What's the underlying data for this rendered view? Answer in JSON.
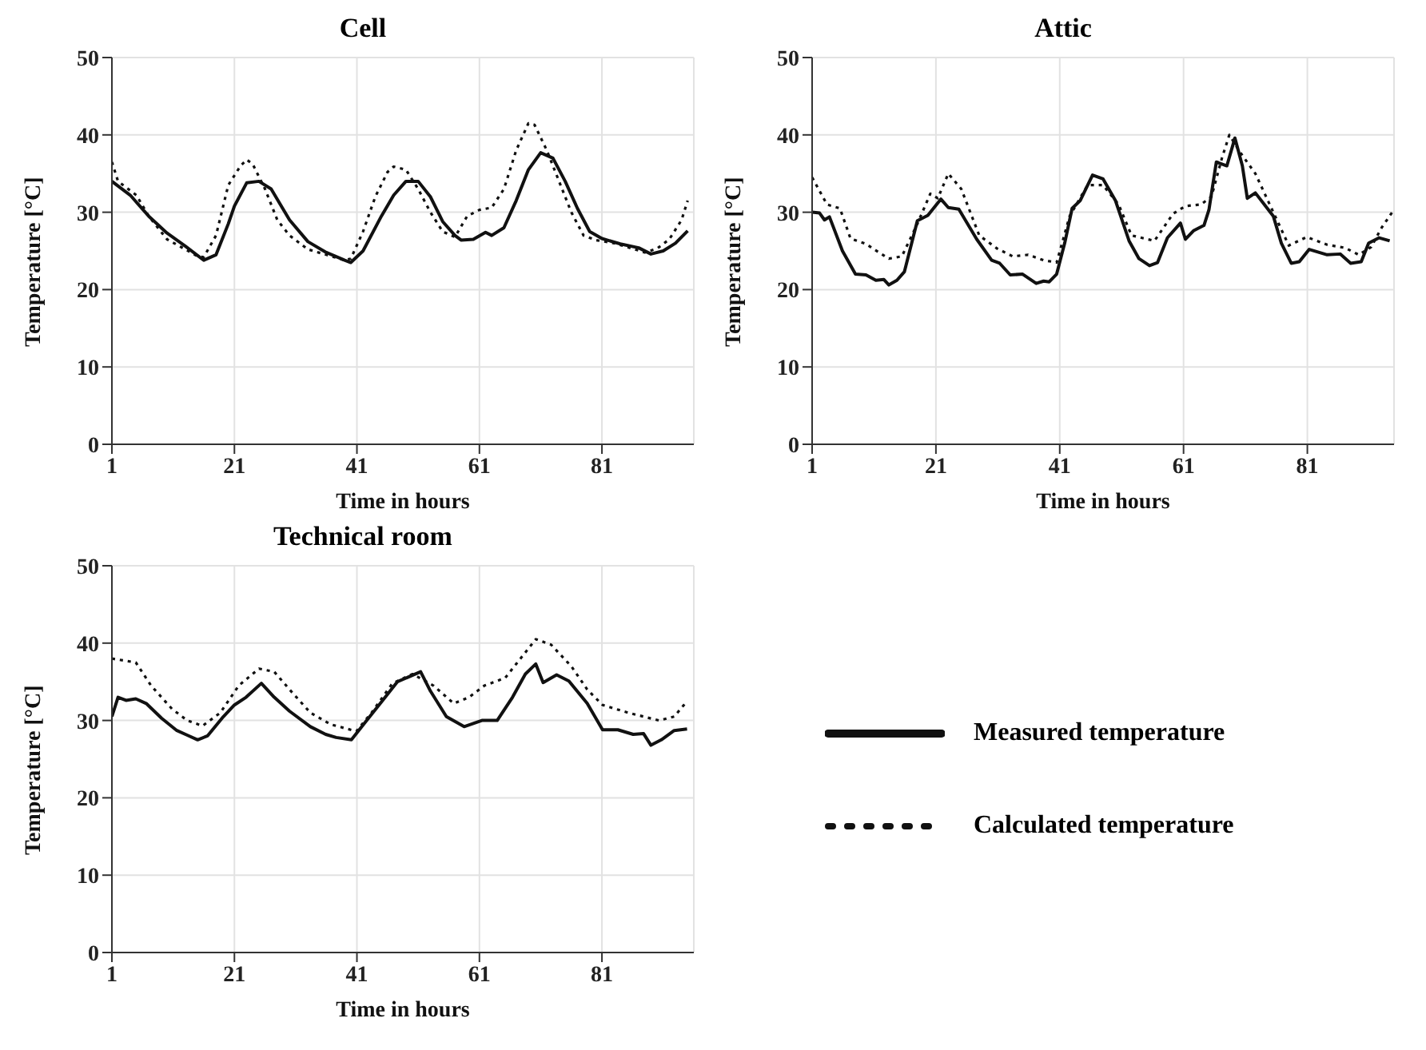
{
  "chart_data": [
    {
      "type": "line",
      "title": "Cell",
      "xlabel": "Time in hours",
      "ylabel": "Temperature [°C]",
      "xlim": [
        1,
        96
      ],
      "xticks": [
        1,
        21,
        41,
        61,
        81
      ],
      "ylim": [
        0,
        50
      ],
      "yticks": [
        0,
        10,
        20,
        30,
        40,
        50
      ],
      "grid": true,
      "marker": "none",
      "series": [
        {
          "color": "#111111",
          "line_style": "solid",
          "x": [
            1,
            4,
            7,
            10,
            13,
            16,
            18,
            20,
            21,
            23,
            25,
            27,
            30,
            33,
            36,
            39,
            40,
            42,
            45,
            47,
            49,
            51,
            53,
            55,
            57,
            58,
            60,
            62,
            63,
            65,
            67,
            69,
            71,
            73,
            75,
            77,
            79,
            81,
            84,
            87,
            89,
            91,
            93,
            95
          ],
          "values": [
            34,
            32.2,
            29.5,
            27.3,
            25.6,
            23.8,
            24.5,
            28.5,
            30.8,
            33.8,
            34,
            33,
            29,
            26.2,
            24.8,
            23.8,
            23.5,
            25,
            29.5,
            32.2,
            34,
            34,
            32,
            28.8,
            27,
            26.4,
            26.5,
            27.4,
            27,
            28,
            31.5,
            35.5,
            37.7,
            37,
            34,
            30.5,
            27.5,
            26.6,
            25.9,
            25.4,
            24.6,
            25,
            26,
            27.6
          ]
        },
        {
          "color": "#111111",
          "line_style": "dotted",
          "x": [
            1,
            2,
            4,
            5,
            7,
            10,
            13,
            15,
            16,
            18,
            20,
            22,
            23,
            24,
            26,
            28,
            30,
            33,
            36,
            39,
            40,
            42,
            44,
            46,
            47,
            49,
            51,
            53,
            55,
            57,
            59,
            61,
            63,
            65,
            67,
            69,
            70,
            72,
            74,
            76,
            78,
            80,
            83,
            86,
            88,
            90,
            92,
            94,
            95
          ],
          "values": [
            36.5,
            34,
            32.8,
            32.2,
            29.5,
            26.5,
            25.2,
            24.3,
            24.2,
            27,
            33.5,
            36,
            36.8,
            36.2,
            33,
            29,
            27,
            25.2,
            24.5,
            23.8,
            24,
            27.5,
            32,
            35.2,
            35.9,
            35.5,
            33,
            30,
            27.5,
            26.8,
            29.5,
            30.3,
            30.6,
            33,
            38,
            41.5,
            41.3,
            38,
            34,
            30,
            27,
            26.4,
            26,
            25.3,
            24.8,
            25.3,
            26.5,
            29,
            31.5
          ]
        }
      ]
    },
    {
      "type": "line",
      "title": "Attic",
      "xlabel": "Time in hours",
      "ylabel": "Temperature [°C]",
      "xlim": [
        1,
        95
      ],
      "xticks": [
        1,
        21,
        41,
        61,
        81
      ],
      "ylim": [
        0,
        50
      ],
      "yticks": [
        0,
        10,
        20,
        30,
        40,
        50
      ],
      "grid": true,
      "marker": "none",
      "series": [
        {
          "color": "#111111",
          "line_style": "solid",
          "x": [
            1,
            2.2,
            3,
            3.8,
            5.9,
            8,
            9.7,
            11.3,
            12.6,
            13.4,
            14.7,
            15.9,
            18,
            19.7,
            21.8,
            23,
            24.7,
            27.6,
            30,
            31.3,
            33,
            35,
            37.2,
            38.4,
            39.3,
            40.5,
            41.8,
            43,
            44.3,
            46.3,
            48,
            50,
            52.2,
            53.8,
            55.5,
            56.8,
            58.4,
            60.5,
            61.3,
            62.6,
            64.3,
            65.1,
            66.3,
            68,
            69.3,
            70.5,
            71.3,
            72.6,
            75.5,
            76.8,
            78.4,
            79.7,
            81.3,
            84.2,
            86.3,
            88,
            89.7,
            90.9,
            92.6,
            94.3
          ],
          "values": [
            30,
            29.9,
            29,
            29.4,
            25,
            22,
            21.9,
            21.2,
            21.3,
            20.6,
            21.2,
            22.3,
            28.9,
            29.6,
            31.7,
            30.6,
            30.4,
            26.5,
            23.8,
            23.4,
            21.9,
            22,
            20.8,
            21.1,
            21,
            22,
            26,
            30.5,
            31.5,
            34.8,
            34.3,
            31.5,
            26.3,
            24,
            23.1,
            23.5,
            26.7,
            28.6,
            26.5,
            27.6,
            28.3,
            30.3,
            36.5,
            36,
            39.6,
            36,
            31.8,
            32.5,
            29.5,
            26,
            23.4,
            23.6,
            25.2,
            24.5,
            24.6,
            23.4,
            23.6,
            26,
            26.7,
            26.3
          ]
        },
        {
          "color": "#111111",
          "line_style": "dotted",
          "x": [
            1,
            3.4,
            5.5,
            7.2,
            9.7,
            11.8,
            13.4,
            15.5,
            18,
            20.1,
            21.3,
            23,
            25.1,
            28,
            30.9,
            33.4,
            35.9,
            38.4,
            40.5,
            42.6,
            45.5,
            48,
            50.5,
            52.6,
            56.3,
            59.3,
            61.3,
            63.8,
            65.5,
            67.2,
            68.4,
            70.1,
            72.6,
            75.5,
            78,
            80.9,
            84.2,
            87.1,
            89.3,
            91.3,
            93,
            94.7
          ],
          "values": [
            34.5,
            31,
            30.5,
            26.6,
            25.9,
            24.8,
            24,
            24.3,
            28.5,
            32.4,
            31.8,
            35,
            33,
            27,
            25.3,
            24.3,
            24.5,
            23.8,
            23.5,
            29.5,
            33.5,
            33.5,
            31,
            27,
            26.3,
            29.8,
            30.8,
            31,
            32,
            37,
            40,
            37.8,
            35,
            30,
            25.7,
            26.8,
            25.8,
            25.4,
            24.5,
            25.5,
            28,
            30
          ]
        }
      ]
    },
    {
      "type": "line",
      "title": "Technical room",
      "xlabel": "Time in hours",
      "ylabel": "Temperature [°C]",
      "xlim": [
        1,
        96
      ],
      "xticks": [
        1,
        21,
        41,
        61,
        81
      ],
      "ylim": [
        0,
        50
      ],
      "yticks": [
        0,
        10,
        20,
        30,
        40,
        50
      ],
      "grid": true,
      "marker": "none",
      "legend": "right",
      "series": [
        {
          "name": "Measured temperature",
          "color": "#111111",
          "line_style": "solid",
          "x": [
            1,
            2,
            3.3,
            4.9,
            6.6,
            9.1,
            11.6,
            13.3,
            15,
            16.6,
            19.2,
            21,
            22.9,
            25.4,
            27.5,
            30,
            33.4,
            35.9,
            37.6,
            40.1,
            42.6,
            45.1,
            47.6,
            51.4,
            53,
            55.6,
            58.5,
            61.4,
            63.9,
            66.4,
            68.5,
            70.2,
            71.4,
            73.6,
            75.6,
            78.6,
            81.1,
            83.6,
            86.1,
            87.8,
            89,
            90.7,
            92.8,
            94.9
          ],
          "values": [
            30.5,
            33,
            32.6,
            32.8,
            32.2,
            30.3,
            28.7,
            28.1,
            27.5,
            28,
            30.5,
            32,
            33,
            34.8,
            33,
            31.2,
            29.2,
            28.2,
            27.8,
            27.5,
            30,
            32.5,
            35,
            36.3,
            33.8,
            30.5,
            29.2,
            30,
            30,
            33,
            36,
            37.3,
            34.9,
            35.9,
            35.1,
            32.2,
            28.8,
            28.8,
            28.2,
            28.3,
            26.8,
            27.5,
            28.7,
            28.9
          ]
        },
        {
          "name": "Calculated temperature",
          "color": "#111111",
          "line_style": "dotted",
          "x": [
            1,
            4.9,
            7.4,
            10.8,
            13.3,
            15.8,
            18.7,
            21.7,
            25,
            27.5,
            30,
            33.4,
            36.7,
            40.9,
            43.4,
            46.8,
            50.1,
            53.5,
            56.8,
            59.3,
            61.8,
            65.2,
            67.7,
            70.2,
            72.7,
            76,
            78.6,
            81.1,
            85.3,
            90.3,
            92.8,
            94.9
          ],
          "values": [
            38,
            37.5,
            34.5,
            31.5,
            30,
            29.3,
            31,
            34.5,
            36.7,
            36.3,
            34,
            31,
            29.5,
            28.6,
            31,
            34.8,
            36,
            34.5,
            32.2,
            33,
            34.5,
            35.5,
            38,
            40.5,
            39.8,
            37,
            34,
            32,
            31,
            30,
            30.5,
            32.5
          ]
        }
      ]
    }
  ]
}
